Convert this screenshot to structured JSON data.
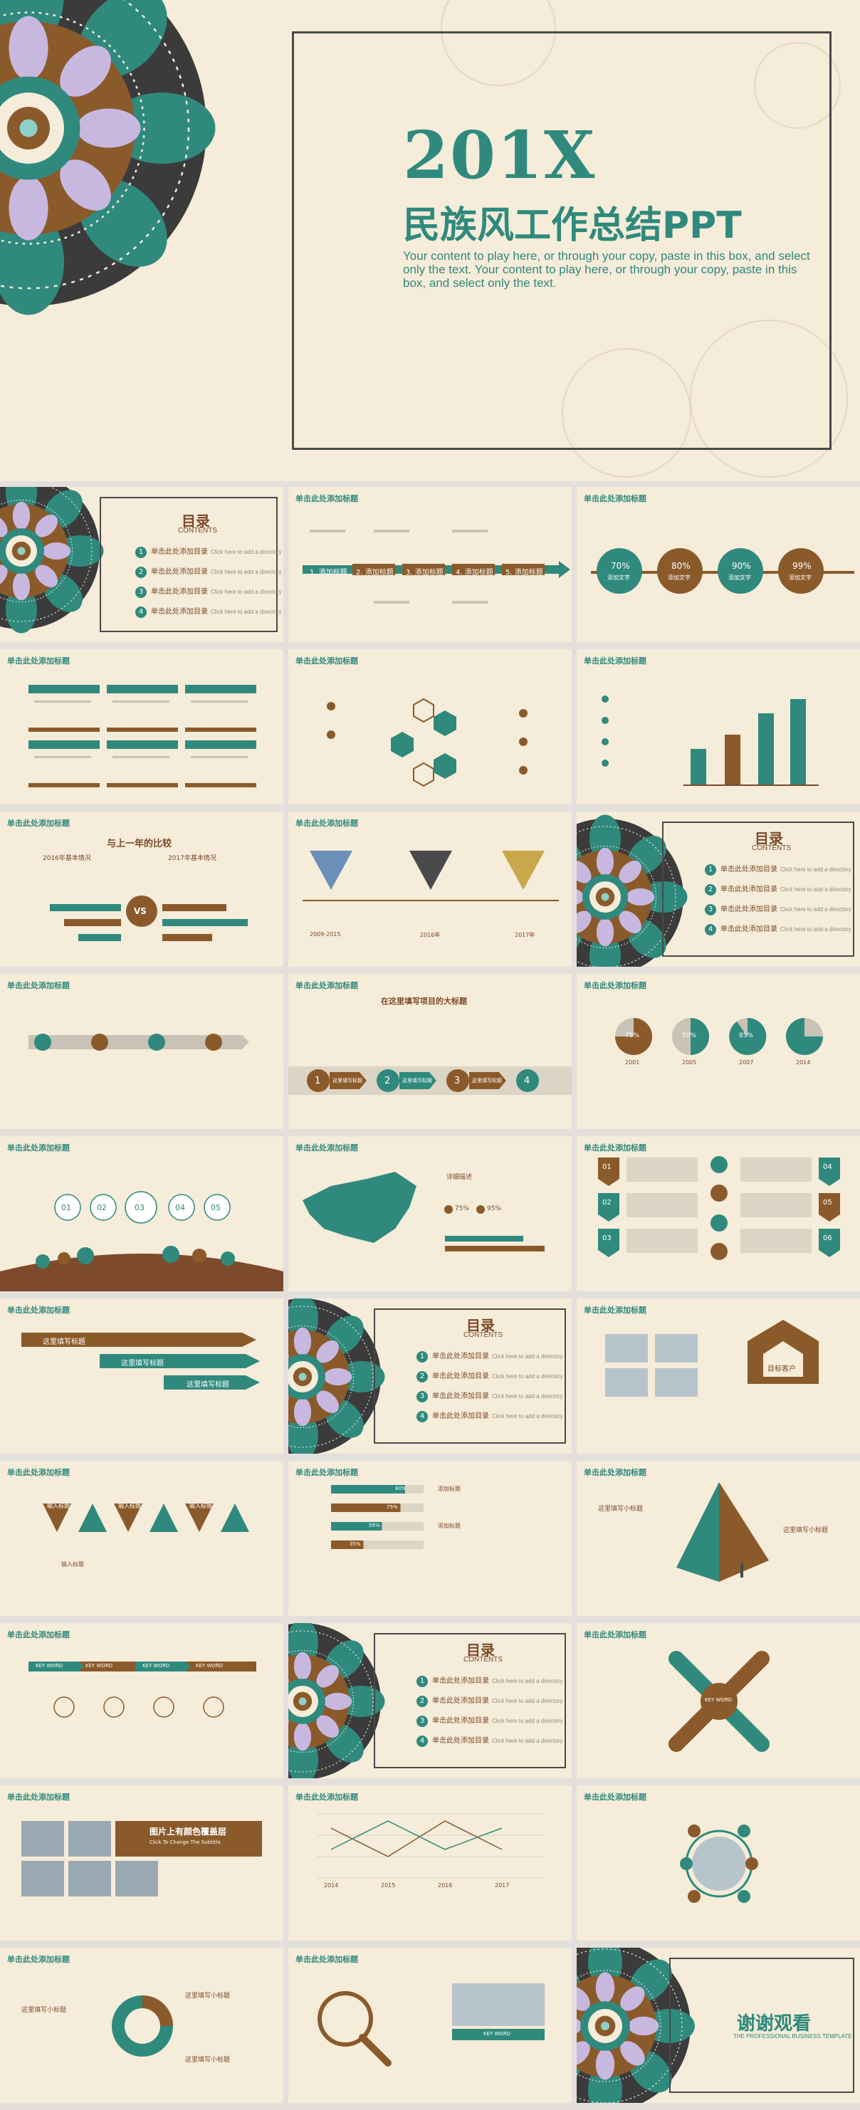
{
  "hero": {
    "year": "201X",
    "title": "民族风工作总结PPT",
    "subtitle": "Your content to play here, or through your copy, paste in this box, and select only the text. Your content to play here, or through your copy, paste in this box, and select only the text."
  },
  "slide_header": "单击此处添加标题",
  "toc": {
    "title": "目录",
    "subtitle": "CONTENTS",
    "items": [
      {
        "num": "1",
        "label": "单击此处添加目录",
        "hint": "Click here to add a directory"
      },
      {
        "num": "2",
        "label": "单击此处添加目录",
        "hint": "Click here to add a directory"
      },
      {
        "num": "3",
        "label": "单击此处添加目录",
        "hint": "Click here to add a directory"
      },
      {
        "num": "4",
        "label": "单击此处添加目录",
        "hint": "Click here to add a directory"
      }
    ]
  },
  "slides": {
    "steps": [
      "1. 添加标题",
      "2. 添加标题",
      "3. 添加标题",
      "4. 添加标题",
      "5. 添加标题"
    ],
    "percent_circles": [
      {
        "value": "70%",
        "label": "添加文字"
      },
      {
        "value": "80%",
        "label": "添加文字"
      },
      {
        "value": "90%",
        "label": "添加文字"
      },
      {
        "value": "99%",
        "label": "添加文字"
      }
    ],
    "compare_title": "与上一年的比较",
    "compare_left": "2016年基本情况",
    "compare_right": "2017年基本情况",
    "vs": "VS",
    "timeline_years": [
      "2009-2015",
      "2016年",
      "2017年"
    ],
    "big_title": "在这里填写项目的大标题",
    "arrow_steps": [
      "1",
      "2",
      "3",
      "4"
    ],
    "arrow_label": "这里填写标题",
    "pies": [
      {
        "value": "75%",
        "year": "2001"
      },
      {
        "value": "50%",
        "year": "2005"
      },
      {
        "value": "85%",
        "year": "2007"
      },
      {
        "value": "",
        "year": "2014"
      }
    ],
    "bubbles": [
      "01",
      "02",
      "03",
      "04",
      "05"
    ],
    "map_stats": [
      "75%",
      "95%"
    ],
    "map_title": "详细描述",
    "zigzag_left": [
      "01",
      "02",
      "03"
    ],
    "zigzag_right": [
      "04",
      "05",
      "06"
    ],
    "banner_labels": [
      "这里填写标题",
      "这里填写标题",
      "这里填写标题"
    ],
    "target_label": "目标客户",
    "triangle_labels": [
      "输入标题",
      "输入标题",
      "输入标题",
      "输入标题"
    ],
    "progress": [
      {
        "value": "80%",
        "label": "添加标题"
      },
      {
        "value": "75%",
        "label": "添加标题"
      },
      {
        "value": "55%",
        "label": "添加标题"
      },
      {
        "value": "35%",
        "label": "添加标题"
      }
    ],
    "pyramid_labels": [
      "这里填写小标题",
      "这里填写小标题"
    ],
    "keyword": "KEY WORD",
    "photo_title": "图片上有颜色覆盖层",
    "photo_sub": "Click To Change The Subtitle",
    "line_years": [
      "2014",
      "2015",
      "2016",
      "2017"
    ],
    "subtitle_short": "这里填写小标题"
  },
  "thanks": {
    "title": "谢谢观看",
    "subtitle": "THE PROFESSIONAL BUSINESS TEMPLATE"
  }
}
